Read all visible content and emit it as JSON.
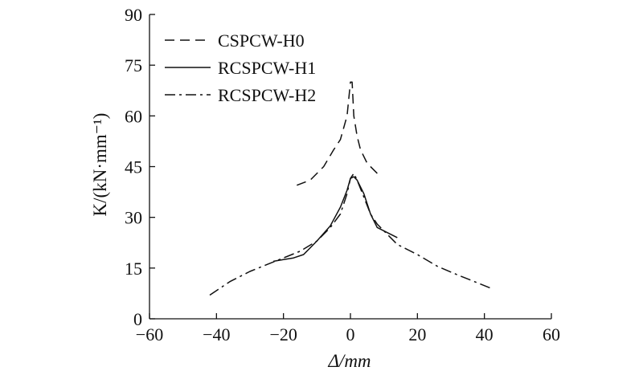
{
  "chart_data": {
    "type": "line",
    "title": "",
    "xlabel": "Δ/mm",
    "ylabel": "K/(kN·mm⁻¹)",
    "xlim": [
      -60,
      60
    ],
    "ylim": [
      0,
      90
    ],
    "xticks": [
      -60,
      -40,
      -20,
      0,
      20,
      40,
      60
    ],
    "yticks": [
      0,
      15,
      30,
      45,
      60,
      75,
      90
    ],
    "legend_position": "top-left",
    "grid": false,
    "series": [
      {
        "name": "CSPCW-H0",
        "dash": "dashed",
        "x": [
          -16,
          -12,
          -8,
          -5,
          -3,
          -1,
          0,
          0.5,
          1,
          2,
          3,
          5,
          9
        ],
        "y": [
          39.5,
          41,
          45,
          50,
          53,
          60,
          70,
          70,
          60,
          54,
          50,
          46,
          42
        ]
      },
      {
        "name": "RCSPCW-H1",
        "dash": "solid",
        "x": [
          -23,
          -20,
          -17,
          -14,
          -10,
          -6,
          -3,
          -1,
          0,
          1,
          2,
          4,
          6,
          8,
          14
        ],
        "y": [
          17,
          17.5,
          18,
          19,
          23,
          27.5,
          33,
          38,
          41.5,
          42,
          41,
          37,
          31,
          27,
          24
        ]
      },
      {
        "name": "RCSPCW-H2",
        "dash": "dashdot",
        "x": [
          -42,
          -36,
          -30,
          -25,
          -20,
          -15,
          -10,
          -6,
          -3,
          -1,
          0,
          1,
          2,
          4,
          6,
          8,
          14,
          20,
          26,
          32,
          37,
          42
        ],
        "y": [
          7,
          11,
          14,
          16,
          18,
          20,
          23,
          27,
          31,
          37,
          41.5,
          43,
          41,
          36,
          31,
          28,
          22,
          19,
          15.5,
          13,
          11,
          9
        ]
      }
    ]
  }
}
